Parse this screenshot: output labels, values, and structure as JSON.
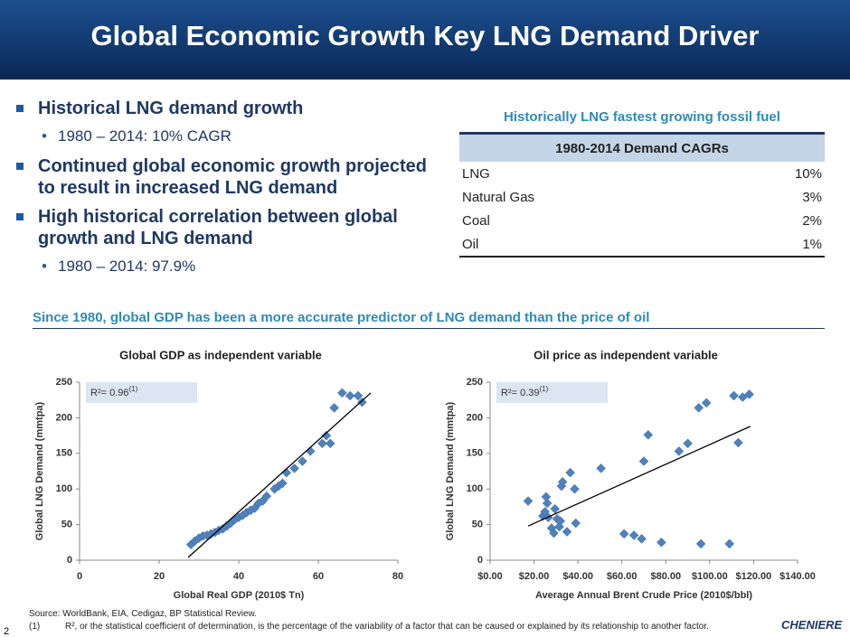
{
  "header": {
    "title": "Global Economic Growth Key LNG Demand Driver"
  },
  "bullets": [
    {
      "level": 1,
      "text": "Historical LNG demand growth"
    },
    {
      "level": 2,
      "text": "1980 – 2014: 10% CAGR"
    },
    {
      "level": 1,
      "text": "Continued global economic growth projected to result in increased LNG demand"
    },
    {
      "level": 1,
      "text": "High historical correlation between global growth and LNG demand"
    },
    {
      "level": 2,
      "text": "1980 – 2014: 97.9%"
    }
  ],
  "table": {
    "title": "Historically LNG fastest growing fossil fuel",
    "header": "1980-2014 Demand CAGRs",
    "rows": [
      [
        "LNG",
        "10%"
      ],
      [
        "Natural Gas",
        "3%"
      ],
      [
        "Coal",
        "2%"
      ],
      [
        "Oil",
        "1%"
      ]
    ]
  },
  "subtitle": "Since 1980, global GDP has been a more accurate predictor of LNG demand than the price of oil",
  "chart_data": [
    {
      "type": "scatter",
      "title": "Global GDP as independent variable",
      "x_label": "Global Real GDP (2010$ Tn)",
      "y_label": "Global LNG Demand (mmtpa)",
      "annotation": {
        "text": "R²= 0.96",
        "note": "(1)"
      },
      "color": "#4f81bd",
      "x": [
        28,
        29,
        30,
        31,
        32,
        33,
        34,
        35,
        36,
        37,
        38,
        39,
        40,
        41,
        42,
        43,
        44,
        45,
        46,
        47,
        49,
        50,
        51,
        52,
        54,
        56,
        58,
        61,
        62,
        63,
        64,
        66,
        68,
        70,
        71
      ],
      "values": [
        22,
        27,
        31,
        34,
        35,
        37,
        39,
        42,
        44,
        48,
        52,
        57,
        60,
        63,
        67,
        70,
        73,
        80,
        83,
        90,
        100,
        104,
        108,
        123,
        129,
        139,
        153,
        164,
        175,
        164,
        214,
        235,
        231,
        231,
        222
      ],
      "trendline": {
        "x": [
          27.3,
          73.2
        ],
        "values": [
          4,
          235
        ]
      },
      "xlim": [
        0,
        80
      ],
      "xticks": [
        0,
        20,
        40,
        60,
        80
      ],
      "ylim": [
        0,
        250
      ],
      "yticks": [
        0,
        50,
        100,
        150,
        200,
        250
      ]
    },
    {
      "type": "scatter",
      "title": "Oil price as independent variable",
      "x_label": "Average Annual Brent Crude Price (2010$/bbl)",
      "y_label": "Global LNG Demand (mmtpa)",
      "annotation": {
        "text": "R²= 0.39",
        "note": "(1)"
      },
      "color": "#4f81bd",
      "x": [
        17.3,
        24,
        25,
        25.5,
        26,
        26.5,
        28,
        29,
        29.5,
        30.5,
        31.5,
        32,
        32.5,
        33,
        35,
        36.5,
        38.5,
        39,
        50.5,
        61,
        65.5,
        69,
        70,
        72,
        78,
        86,
        90,
        95,
        96,
        98.5,
        109,
        111,
        113,
        115,
        118
      ],
      "values": [
        83,
        62,
        68,
        89,
        80,
        60,
        45,
        38,
        72,
        58,
        47,
        55,
        104,
        110,
        40,
        123,
        100,
        52,
        129,
        37,
        35,
        30,
        139,
        176,
        25,
        153,
        164,
        214,
        23,
        221,
        23,
        231,
        165,
        229,
        233
      ],
      "trendline": {
        "x": [
          17.3,
          118.5
        ],
        "values": [
          48,
          188
        ]
      },
      "xlim": [
        0,
        140
      ],
      "xticks": [
        {
          "value": 0,
          "label": "$0.00"
        },
        {
          "value": 20,
          "label": "$20.00"
        },
        {
          "value": 40,
          "label": "$40.00"
        },
        {
          "value": 60,
          "label": "$60.00"
        },
        {
          "value": 80,
          "label": "$80.00"
        },
        {
          "value": 100,
          "label": "$100.00"
        },
        {
          "value": 120,
          "label": "$120.00"
        },
        {
          "value": 140,
          "label": "$140.00"
        }
      ],
      "ylim": [
        0,
        250
      ],
      "yticks": [
        0,
        50,
        100,
        150,
        200,
        250
      ]
    }
  ],
  "footer": {
    "source": "Source:   WorldBank, EIA, Cedigaz, BP Statistical Review.",
    "note_mark": "(1)",
    "note": "R², or the statistical coefficient of determination, is the percentage of the variability of a factor that can be caused or explained by its relationship to another factor.",
    "page": "2",
    "logo": "CHENIERE"
  }
}
